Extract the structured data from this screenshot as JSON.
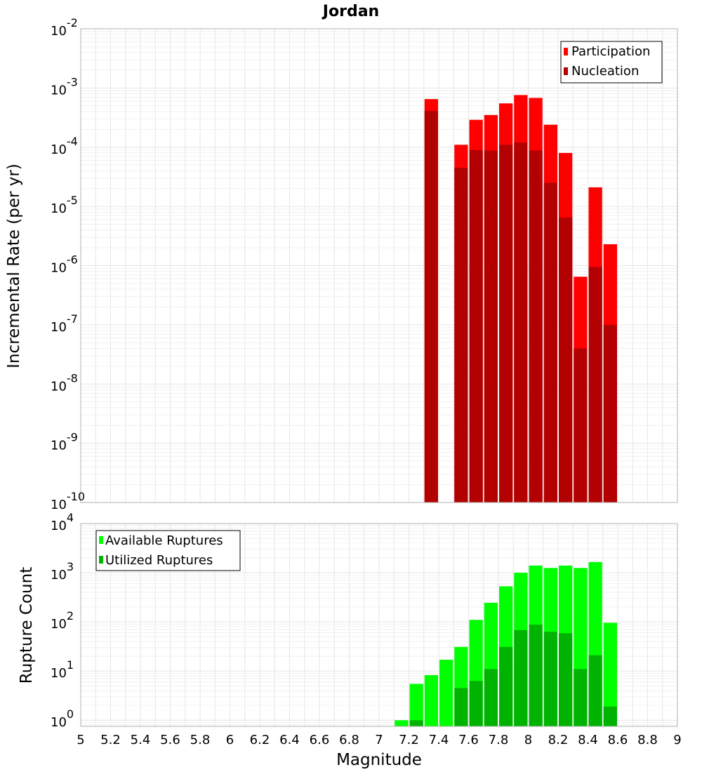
{
  "chart_data": [
    {
      "type": "bar",
      "title": "Jordan",
      "xlabel": "",
      "ylabel": "Incremental Rate (per yr)",
      "yscale": "log",
      "ylim": [
        1e-10,
        0.01
      ],
      "xlim": [
        5,
        9
      ],
      "y_ticks": [
        {
          "base": "10",
          "exp": "-10"
        },
        {
          "base": "10",
          "exp": "-9"
        },
        {
          "base": "10",
          "exp": "-8"
        },
        {
          "base": "10",
          "exp": "-7"
        },
        {
          "base": "10",
          "exp": "-6"
        },
        {
          "base": "10",
          "exp": "-5"
        },
        {
          "base": "10",
          "exp": "-4"
        },
        {
          "base": "10",
          "exp": "-3"
        },
        {
          "base": "10",
          "exp": "-2"
        }
      ],
      "legend": [
        "Participation",
        "Nucleation"
      ],
      "legend_position": "top-right",
      "colors": {
        "Participation": "#ff0000",
        "Nucleation": "#b30000"
      },
      "x": [
        7.35,
        7.55,
        7.65,
        7.75,
        7.85,
        7.95,
        8.05,
        8.15,
        8.25,
        8.35,
        8.45,
        8.55
      ],
      "series": [
        {
          "name": "Participation",
          "values": [
            0.00065,
            0.00011,
            0.00029,
            0.00035,
            0.00055,
            0.00076,
            0.00068,
            0.00024,
            8e-05,
            6.5e-07,
            2.1e-05,
            2.3e-06
          ]
        },
        {
          "name": "Nucleation",
          "values": [
            0.00041,
            4.5e-05,
            9e-05,
            8.8e-05,
            0.00011,
            0.00012,
            8.8e-05,
            2.5e-05,
            6.5e-06,
            4e-08,
            9.5e-07,
            1e-07
          ]
        }
      ]
    },
    {
      "type": "bar",
      "title": "",
      "xlabel": "Magnitude",
      "ylabel": "Rupture Count",
      "yscale": "log",
      "ylim": [
        0.75,
        10000
      ],
      "xlim": [
        5,
        9
      ],
      "y_ticks": [
        {
          "base": "10",
          "exp": "0"
        },
        {
          "base": "10",
          "exp": "1"
        },
        {
          "base": "10",
          "exp": "2"
        },
        {
          "base": "10",
          "exp": "3"
        },
        {
          "base": "10",
          "exp": "4"
        }
      ],
      "x_ticks": [
        "5",
        "5.2",
        "5.4",
        "5.6",
        "5.8",
        "6",
        "6.2",
        "6.4",
        "6.6",
        "6.8",
        "7",
        "7.2",
        "7.4",
        "7.6",
        "7.8",
        "8",
        "8.2",
        "8.4",
        "8.6",
        "8.8",
        "9"
      ],
      "legend": [
        "Available Ruptures",
        "Utilized Ruptures"
      ],
      "legend_position": "top-left",
      "colors": {
        "Available Ruptures": "#00ff00",
        "Utilized Ruptures": "#00b300"
      },
      "x": [
        7.15,
        7.25,
        7.35,
        7.45,
        7.55,
        7.65,
        7.75,
        7.85,
        7.95,
        8.05,
        8.15,
        8.25,
        8.35,
        8.45,
        8.55
      ],
      "series": [
        {
          "name": "Available Ruptures",
          "values": [
            1,
            5.5,
            8.3,
            17,
            31,
            110,
            245,
            530,
            1000,
            1400,
            1250,
            1400,
            1250,
            1650,
            96
          ]
        },
        {
          "name": "Utilized Ruptures",
          "values": [
            null,
            1,
            null,
            null,
            4.5,
            6.3,
            11,
            31,
            68,
            88,
            63,
            59,
            11,
            21,
            1.9
          ]
        }
      ]
    }
  ]
}
